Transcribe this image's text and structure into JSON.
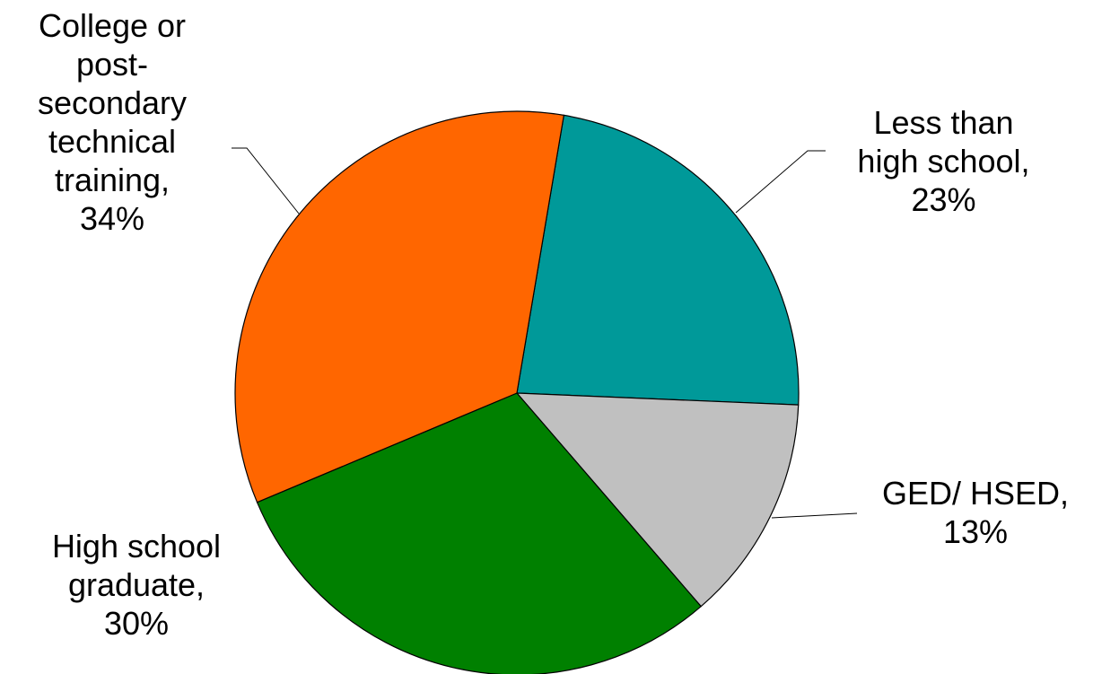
{
  "chart_data": {
    "type": "pie",
    "values": [
      23,
      13,
      30,
      34
    ],
    "value_labels": [
      "Less than high school, 23%",
      "GED/ HSED, 13%",
      "High school graduate, 30%",
      "College or post-secondary technical training, 34%"
    ],
    "colors": [
      "#009999",
      "#c0c0c0",
      "#008000",
      "#ff6600"
    ]
  }
}
